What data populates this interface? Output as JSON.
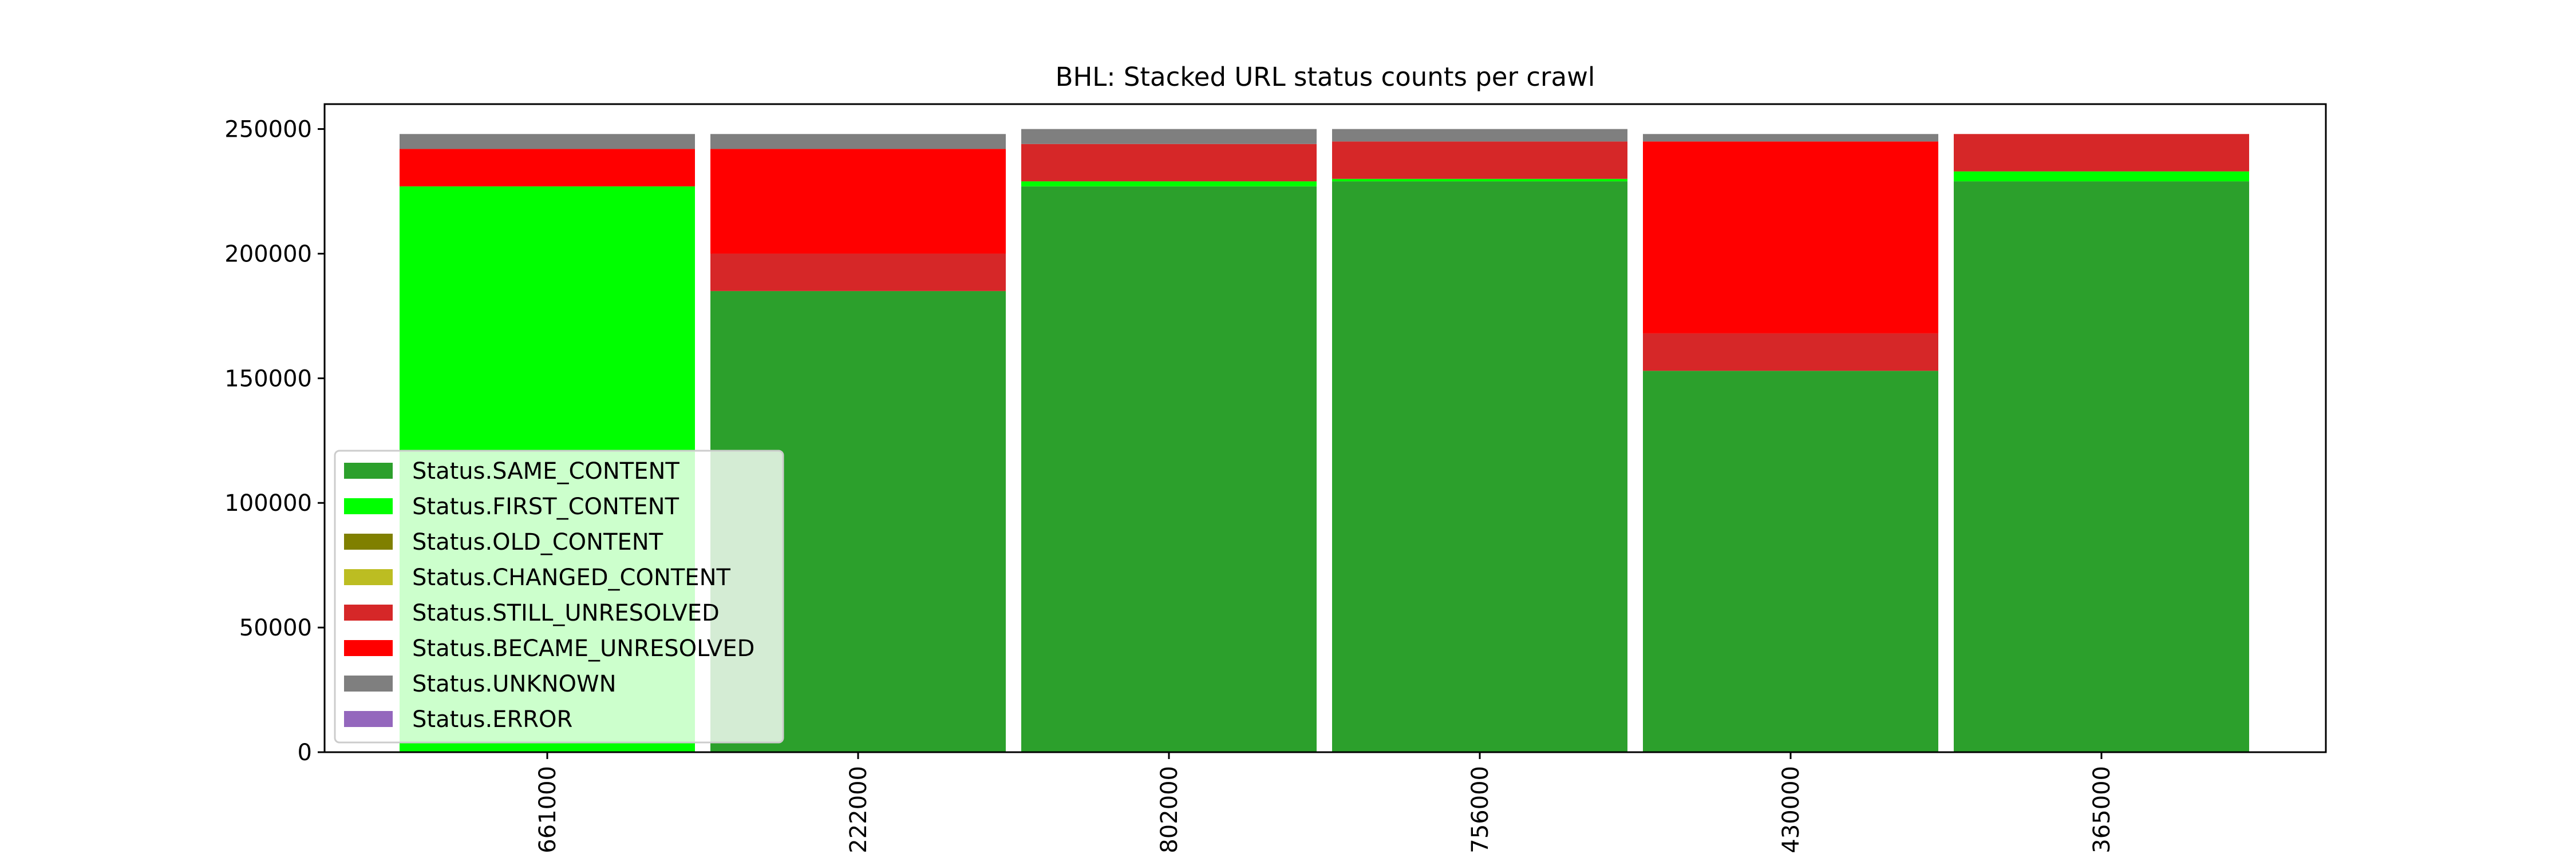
{
  "chart_data": {
    "type": "bar",
    "stacked": true,
    "title": "BHL: Stacked URL status counts per crawl",
    "xlabel": "",
    "ylabel": "",
    "categories": [
      "661000",
      "222000",
      "802000",
      "756000",
      "430000",
      "365000"
    ],
    "ylim": [
      0,
      260000
    ],
    "yticks": [
      "0",
      "50000",
      "100000",
      "150000",
      "200000",
      "250000"
    ],
    "grid": false,
    "legend_position": "lower-left",
    "series": [
      {
        "name": "Status.SAME_CONTENT",
        "color": "#2ca02c",
        "values": [
          0,
          185000,
          227000,
          229000,
          153000,
          229000
        ]
      },
      {
        "name": "Status.FIRST_CONTENT",
        "color": "#00ff00",
        "values": [
          227000,
          0,
          2000,
          1000,
          0,
          4000
        ]
      },
      {
        "name": "Status.OLD_CONTENT",
        "color": "#808000",
        "values": [
          0,
          0,
          0,
          0,
          0,
          0
        ]
      },
      {
        "name": "Status.CHANGED_CONTENT",
        "color": "#bcbd22",
        "values": [
          0,
          0,
          0,
          0,
          0,
          0
        ]
      },
      {
        "name": "Status.STILL_UNRESOLVED",
        "color": "#d62728",
        "values": [
          0,
          15000,
          15000,
          15000,
          15000,
          15000
        ]
      },
      {
        "name": "Status.BECAME_UNRESOLVED",
        "color": "#ff0000",
        "values": [
          15000,
          42000,
          0,
          0,
          77000,
          0
        ]
      },
      {
        "name": "Status.UNKNOWN",
        "color": "#7f7f7f",
        "values": [
          6000,
          6000,
          6000,
          5000,
          3000,
          0
        ]
      },
      {
        "name": "Status.ERROR",
        "color": "#9467bd",
        "values": [
          0,
          0,
          0,
          0,
          0,
          0
        ]
      }
    ]
  }
}
